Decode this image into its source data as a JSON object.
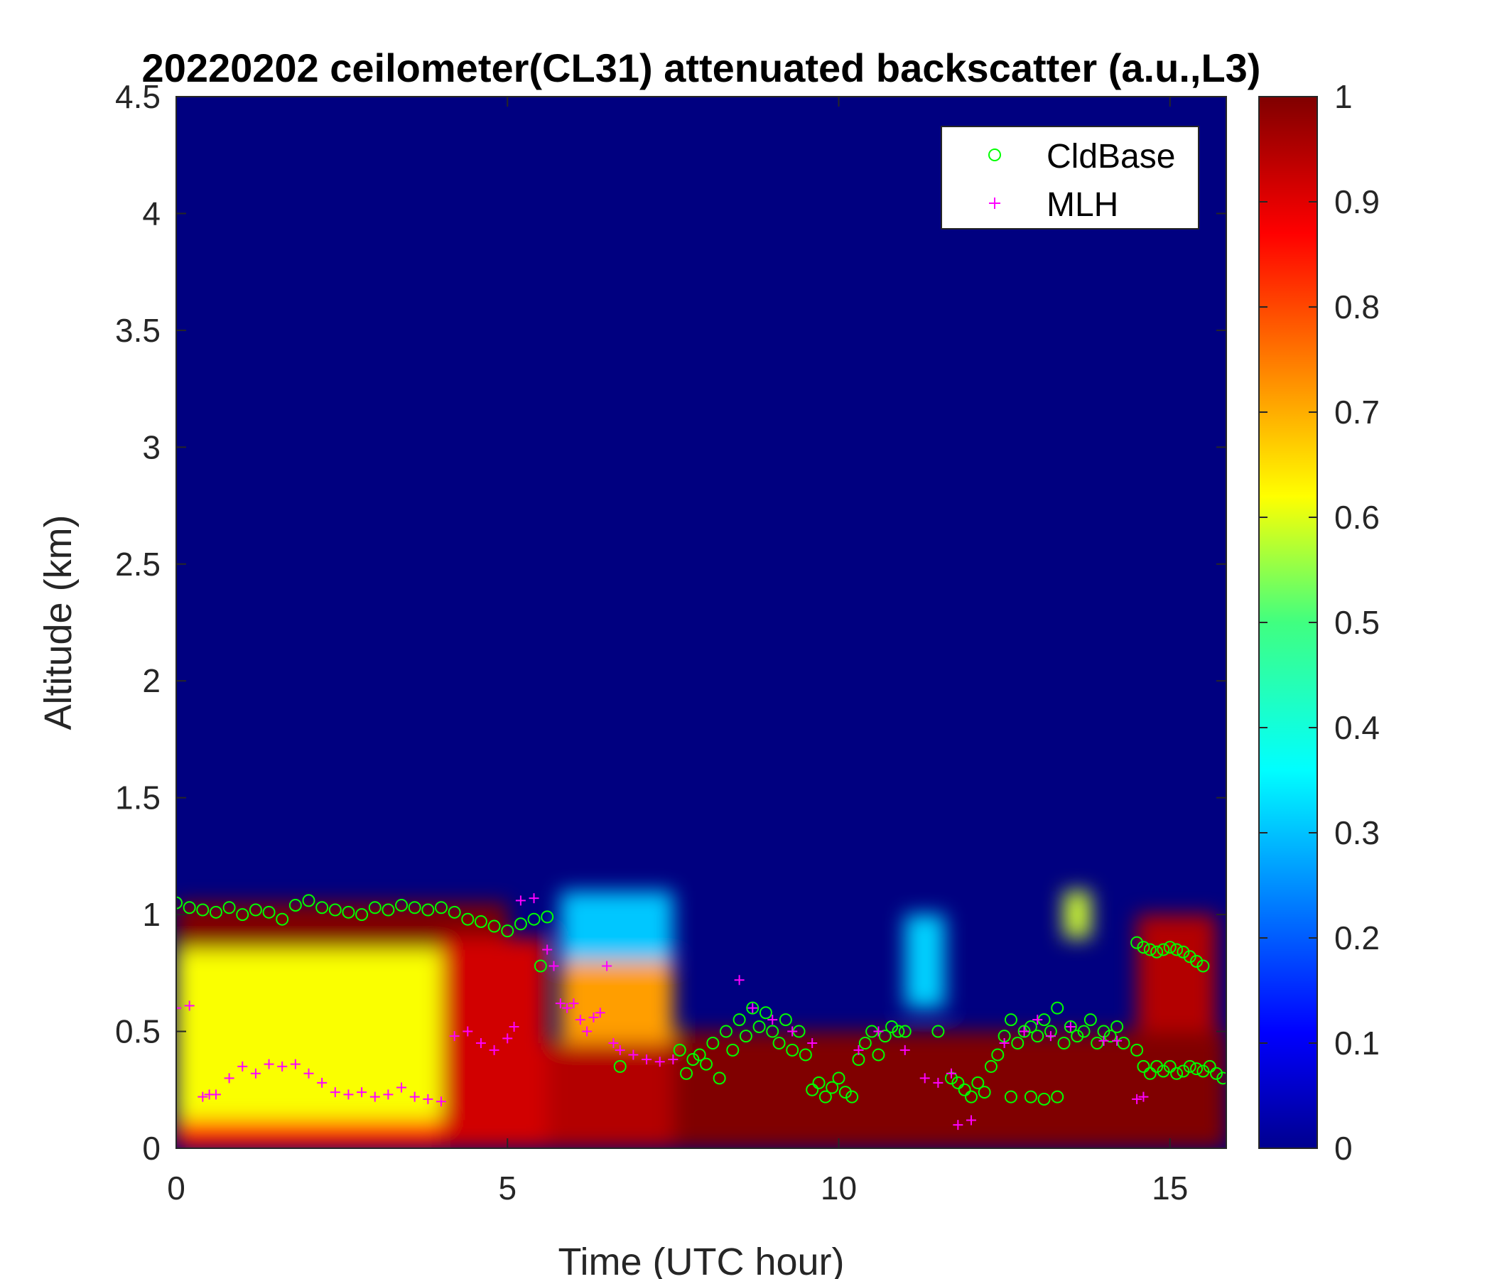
{
  "chart_data": {
    "type": "heatmap",
    "title": "20220202 ceilometer(CL31) attenuated backscatter (a.u.,L3)",
    "xlabel": "Time (UTC hour)",
    "ylabel": "Altitude (km)",
    "xlim": [
      0,
      15.85
    ],
    "ylim": [
      0,
      4.5
    ],
    "x_ticks": [
      "0",
      "5",
      "10",
      "15"
    ],
    "y_ticks": [
      "0",
      "0.5",
      "1",
      "1.5",
      "2",
      "2.5",
      "3",
      "3.5",
      "4",
      "4.5"
    ],
    "colorbar": {
      "range": [
        0,
        1
      ],
      "ticks": [
        "0",
        "0.1",
        "0.2",
        "0.3",
        "0.4",
        "0.5",
        "0.6",
        "0.7",
        "0.8",
        "0.9",
        "1"
      ],
      "colormap": "jet"
    },
    "legend": {
      "position": "top-right",
      "entries": [
        {
          "label": "CldBase",
          "marker": "circle",
          "color": "#00ff00"
        },
        {
          "label": "MLH",
          "marker": "plus",
          "color": "#ff00ff"
        }
      ]
    },
    "background_value": 0.0,
    "field_regions": [
      {
        "x": [
          0.0,
          4.0
        ],
        "y": [
          0.0,
          0.85
        ],
        "value": 0.62
      },
      {
        "x": [
          0.0,
          5.0
        ],
        "y": [
          0.0,
          0.12
        ],
        "value": 0.85
      },
      {
        "x": [
          0.0,
          5.0
        ],
        "y": [
          0.85,
          1.05
        ],
        "value": 1.0
      },
      {
        "x": [
          4.0,
          5.6
        ],
        "y": [
          0.0,
          0.9
        ],
        "value": 0.92
      },
      {
        "x": [
          5.6,
          7.5
        ],
        "y": [
          0.0,
          0.45
        ],
        "value": 0.95
      },
      {
        "x": [
          5.8,
          7.5
        ],
        "y": [
          0.45,
          0.8
        ],
        "value": 0.72
      },
      {
        "x": [
          5.8,
          7.5
        ],
        "y": [
          0.8,
          1.1
        ],
        "value": 0.32
      },
      {
        "x": [
          7.5,
          15.85
        ],
        "y": [
          0.0,
          0.5
        ],
        "value": 1.0
      },
      {
        "x": [
          11.0,
          11.6
        ],
        "y": [
          0.6,
          1.0
        ],
        "value": 0.33
      },
      {
        "x": [
          13.4,
          13.8
        ],
        "y": [
          0.9,
          1.1
        ],
        "value": 0.58
      },
      {
        "x": [
          14.5,
          15.7
        ],
        "y": [
          0.5,
          1.0
        ],
        "value": 0.95
      }
    ],
    "series": [
      {
        "name": "CldBase",
        "marker": "circle",
        "color": "#00ff00",
        "x": [
          0.0,
          0.2,
          0.4,
          0.6,
          0.8,
          1.0,
          1.2,
          1.4,
          1.6,
          1.8,
          2.0,
          2.2,
          2.4,
          2.6,
          2.8,
          3.0,
          3.2,
          3.4,
          3.6,
          3.8,
          4.0,
          4.2,
          4.4,
          4.6,
          4.8,
          5.0,
          5.2,
          5.4,
          5.6,
          5.5,
          6.7,
          7.6,
          7.7,
          7.8,
          7.9,
          8.0,
          8.1,
          8.2,
          8.3,
          8.4,
          8.5,
          8.6,
          8.7,
          8.8,
          8.9,
          9.0,
          9.1,
          9.2,
          9.3,
          9.4,
          9.5,
          9.6,
          9.7,
          9.8,
          9.9,
          10.0,
          10.1,
          10.2,
          10.3,
          10.4,
          10.5,
          10.6,
          10.7,
          10.8,
          10.9,
          11.0,
          11.5,
          11.7,
          11.8,
          11.9,
          12.0,
          12.1,
          12.2,
          12.3,
          12.4,
          12.5,
          12.6,
          12.7,
          12.8,
          12.9,
          13.0,
          13.1,
          13.2,
          13.3,
          13.4,
          13.5,
          13.6,
          13.7,
          13.8,
          13.9,
          14.0,
          14.1,
          14.2,
          14.3,
          14.5,
          14.6,
          14.7,
          14.8,
          14.9,
          15.0,
          15.1,
          15.2,
          15.3,
          15.4,
          15.5,
          15.6,
          15.7,
          15.8,
          14.5,
          14.6,
          14.7,
          14.8,
          14.9,
          15.0,
          15.1,
          15.2,
          15.3,
          15.4,
          15.5,
          12.6,
          12.9,
          13.1,
          13.3
        ],
        "y": [
          1.05,
          1.03,
          1.02,
          1.01,
          1.03,
          1.0,
          1.02,
          1.01,
          0.98,
          1.04,
          1.06,
          1.03,
          1.02,
          1.01,
          1.0,
          1.03,
          1.02,
          1.04,
          1.03,
          1.02,
          1.03,
          1.01,
          0.98,
          0.97,
          0.95,
          0.93,
          0.96,
          0.98,
          0.99,
          0.78,
          0.35,
          0.42,
          0.32,
          0.38,
          0.4,
          0.36,
          0.45,
          0.3,
          0.5,
          0.42,
          0.55,
          0.48,
          0.6,
          0.52,
          0.58,
          0.5,
          0.45,
          0.55,
          0.42,
          0.5,
          0.4,
          0.25,
          0.28,
          0.22,
          0.26,
          0.3,
          0.24,
          0.22,
          0.38,
          0.45,
          0.5,
          0.4,
          0.48,
          0.52,
          0.5,
          0.5,
          0.5,
          0.3,
          0.28,
          0.25,
          0.22,
          0.28,
          0.24,
          0.35,
          0.4,
          0.48,
          0.55,
          0.45,
          0.5,
          0.52,
          0.48,
          0.55,
          0.5,
          0.6,
          0.45,
          0.52,
          0.48,
          0.5,
          0.55,
          0.45,
          0.5,
          0.48,
          0.52,
          0.45,
          0.42,
          0.35,
          0.32,
          0.35,
          0.33,
          0.35,
          0.32,
          0.33,
          0.35,
          0.34,
          0.33,
          0.35,
          0.32,
          0.3,
          0.88,
          0.86,
          0.85,
          0.84,
          0.85,
          0.86,
          0.85,
          0.84,
          0.82,
          0.8,
          0.78,
          0.22,
          0.22,
          0.21,
          0.22
        ]
      },
      {
        "name": "MLH",
        "marker": "plus",
        "color": "#ff00ff",
        "x": [
          0.0,
          0.2,
          0.4,
          0.5,
          0.6,
          0.8,
          1.0,
          1.2,
          1.4,
          1.6,
          1.8,
          2.0,
          2.2,
          2.4,
          2.6,
          2.8,
          3.0,
          3.2,
          3.4,
          3.6,
          3.8,
          4.0,
          4.2,
          4.4,
          4.6,
          4.8,
          5.0,
          5.1,
          5.2,
          5.4,
          5.6,
          5.7,
          5.8,
          5.9,
          6.0,
          6.1,
          6.2,
          6.3,
          6.4,
          6.5,
          6.6,
          6.7,
          6.9,
          7.1,
          7.3,
          7.5,
          8.5,
          8.7,
          9.0,
          9.3,
          9.6,
          10.3,
          10.6,
          11.0,
          11.3,
          11.5,
          11.7,
          11.8,
          12.0,
          12.5,
          12.8,
          13.0,
          13.2,
          13.5,
          14.0,
          14.5,
          14.6,
          14.2
        ],
        "y": [
          0.6,
          0.61,
          0.22,
          0.23,
          0.23,
          0.3,
          0.35,
          0.32,
          0.36,
          0.35,
          0.36,
          0.32,
          0.28,
          0.24,
          0.23,
          0.24,
          0.22,
          0.23,
          0.26,
          0.22,
          0.21,
          0.2,
          0.48,
          0.5,
          0.45,
          0.42,
          0.47,
          0.52,
          1.06,
          1.07,
          0.85,
          0.78,
          0.62,
          0.6,
          0.62,
          0.55,
          0.5,
          0.56,
          0.58,
          0.78,
          0.45,
          0.42,
          0.4,
          0.38,
          0.37,
          0.38,
          0.72,
          0.6,
          0.55,
          0.5,
          0.45,
          0.42,
          0.5,
          0.42,
          0.3,
          0.28,
          0.32,
          0.1,
          0.12,
          0.45,
          0.5,
          0.55,
          0.48,
          0.52,
          0.46,
          0.21,
          0.22,
          0.46
        ]
      }
    ]
  }
}
